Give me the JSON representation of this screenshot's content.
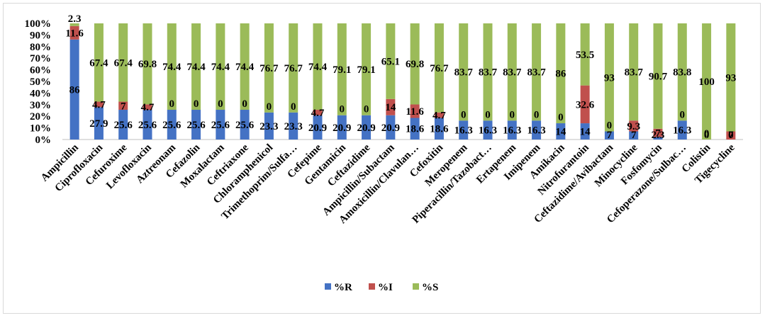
{
  "chart_data": {
    "type": "bar",
    "stacked": "percent",
    "categories": [
      "Ampicillin",
      "Ciprofloxacin",
      "Cefuroxime",
      "Levofloxacin",
      "Aztreonam",
      "Cefazolin",
      "Moxalactam",
      "Ceftriaxone",
      "Chloramphenicol",
      "Trimethoprim/Sulfa…",
      "Cefepime",
      "Gentamicin",
      "Ceftazidime",
      "Ampicillin/Subactam",
      "Amoxicillin/Clavulan…",
      "Cefoxitin",
      "Meropenem",
      "Piperacillin/Tazobact…",
      "Ertapenem",
      "Imipenem",
      "Amikacin",
      "Nitrofurantoin",
      "Ceftazidime/Avibactam",
      "Minocycline",
      "Fosfomycin",
      "Cefoperazone/Sulbac…",
      "Colistin",
      "Tigecycline"
    ],
    "series": [
      {
        "name": "%R",
        "color": "#4472C4",
        "values": [
          86,
          27.9,
          25.6,
          25.6,
          25.6,
          25.6,
          25.6,
          25.6,
          23.3,
          23.3,
          20.9,
          20.9,
          20.9,
          20.9,
          18.6,
          18.6,
          16.3,
          16.3,
          16.3,
          16.3,
          14,
          14,
          7,
          7,
          2.3,
          16.3,
          0,
          0
        ]
      },
      {
        "name": "%I",
        "color": "#C0504D",
        "values": [
          11.6,
          4.7,
          7,
          4.7,
          0,
          0,
          0,
          0,
          0,
          0,
          4.7,
          0,
          0,
          14,
          11.6,
          4.7,
          0,
          0,
          0,
          0,
          0,
          32.6,
          0,
          9.3,
          7,
          0,
          0,
          7
        ]
      },
      {
        "name": "%S",
        "color": "#9BBB59",
        "values": [
          2.3,
          67.4,
          67.4,
          69.8,
          74.4,
          74.4,
          74.4,
          74.4,
          76.7,
          76.7,
          74.4,
          79.1,
          79.1,
          65.1,
          69.8,
          76.7,
          83.7,
          83.7,
          83.7,
          83.7,
          86,
          53.5,
          93,
          83.7,
          90.7,
          83.8,
          100,
          93
        ]
      }
    ],
    "yticks": [
      "0%",
      "10%",
      "20%",
      "30%",
      "40%",
      "50%",
      "60%",
      "70%",
      "80%",
      "90%",
      "100%"
    ],
    "ylim": [
      0,
      100
    ],
    "legend_position": "bottom",
    "grid": false
  }
}
